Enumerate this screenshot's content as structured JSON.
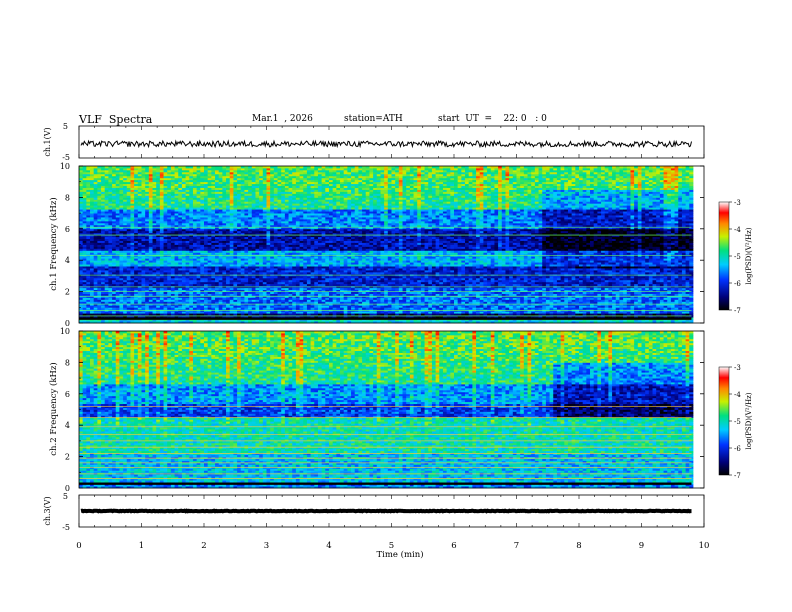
{
  "header": {
    "title": "VLF  Spectra",
    "date": "Mar.1  , 2026",
    "station": "station=ATH",
    "start": "start  UT  =    22: 0   : 0"
  },
  "chart_data": [
    {
      "type": "line",
      "panel": "ch1-waveform",
      "ylabel": "ch.1(V)",
      "yticks": [
        "5",
        "-5"
      ],
      "ylim": [
        -5,
        5
      ],
      "xlim": [
        0,
        10
      ],
      "data_end_min": 9.8,
      "mean_value": -0.6,
      "amplitude": 0.9
    },
    {
      "type": "heatmap",
      "panel": "ch1-spectrogram",
      "ylabel": "ch.1 Frequency (kHz)",
      "ylim": [
        0,
        10
      ],
      "yticks": [
        "0",
        "2",
        "4",
        "6",
        "8",
        "10"
      ],
      "xlim": [
        0,
        10
      ],
      "colorbar": {
        "label": "log(PSD)(V²/Hz)",
        "range": [
          -7,
          -3
        ],
        "ticks": [
          "-3",
          "-4",
          "-5",
          "-6",
          "-7"
        ]
      }
    },
    {
      "type": "heatmap",
      "panel": "ch2-spectrogram",
      "ylabel": "ch.2 Frequency (kHz)",
      "ylim": [
        0,
        10
      ],
      "yticks": [
        "0",
        "2",
        "4",
        "6",
        "8",
        "10"
      ],
      "xlim": [
        0,
        10
      ],
      "colorbar": {
        "label": "log(PSD)(V²/Hz)",
        "range": [
          -7,
          -3
        ],
        "ticks": [
          "-3",
          "-4",
          "-5",
          "-6",
          "-7"
        ]
      }
    },
    {
      "type": "line",
      "panel": "ch3-waveform",
      "ylabel": "ch.3(V)",
      "yticks": [
        "5",
        "-5"
      ],
      "ylim": [
        -5,
        5
      ],
      "xlim": [
        0,
        10
      ],
      "data_end_min": 9.8,
      "mean_value": 0.0,
      "amplitude": 0.1
    }
  ],
  "xaxis": {
    "label": "Time  (min)",
    "ticks": [
      "0",
      "1",
      "2",
      "3",
      "4",
      "5",
      "6",
      "7",
      "8",
      "9",
      "10"
    ]
  }
}
